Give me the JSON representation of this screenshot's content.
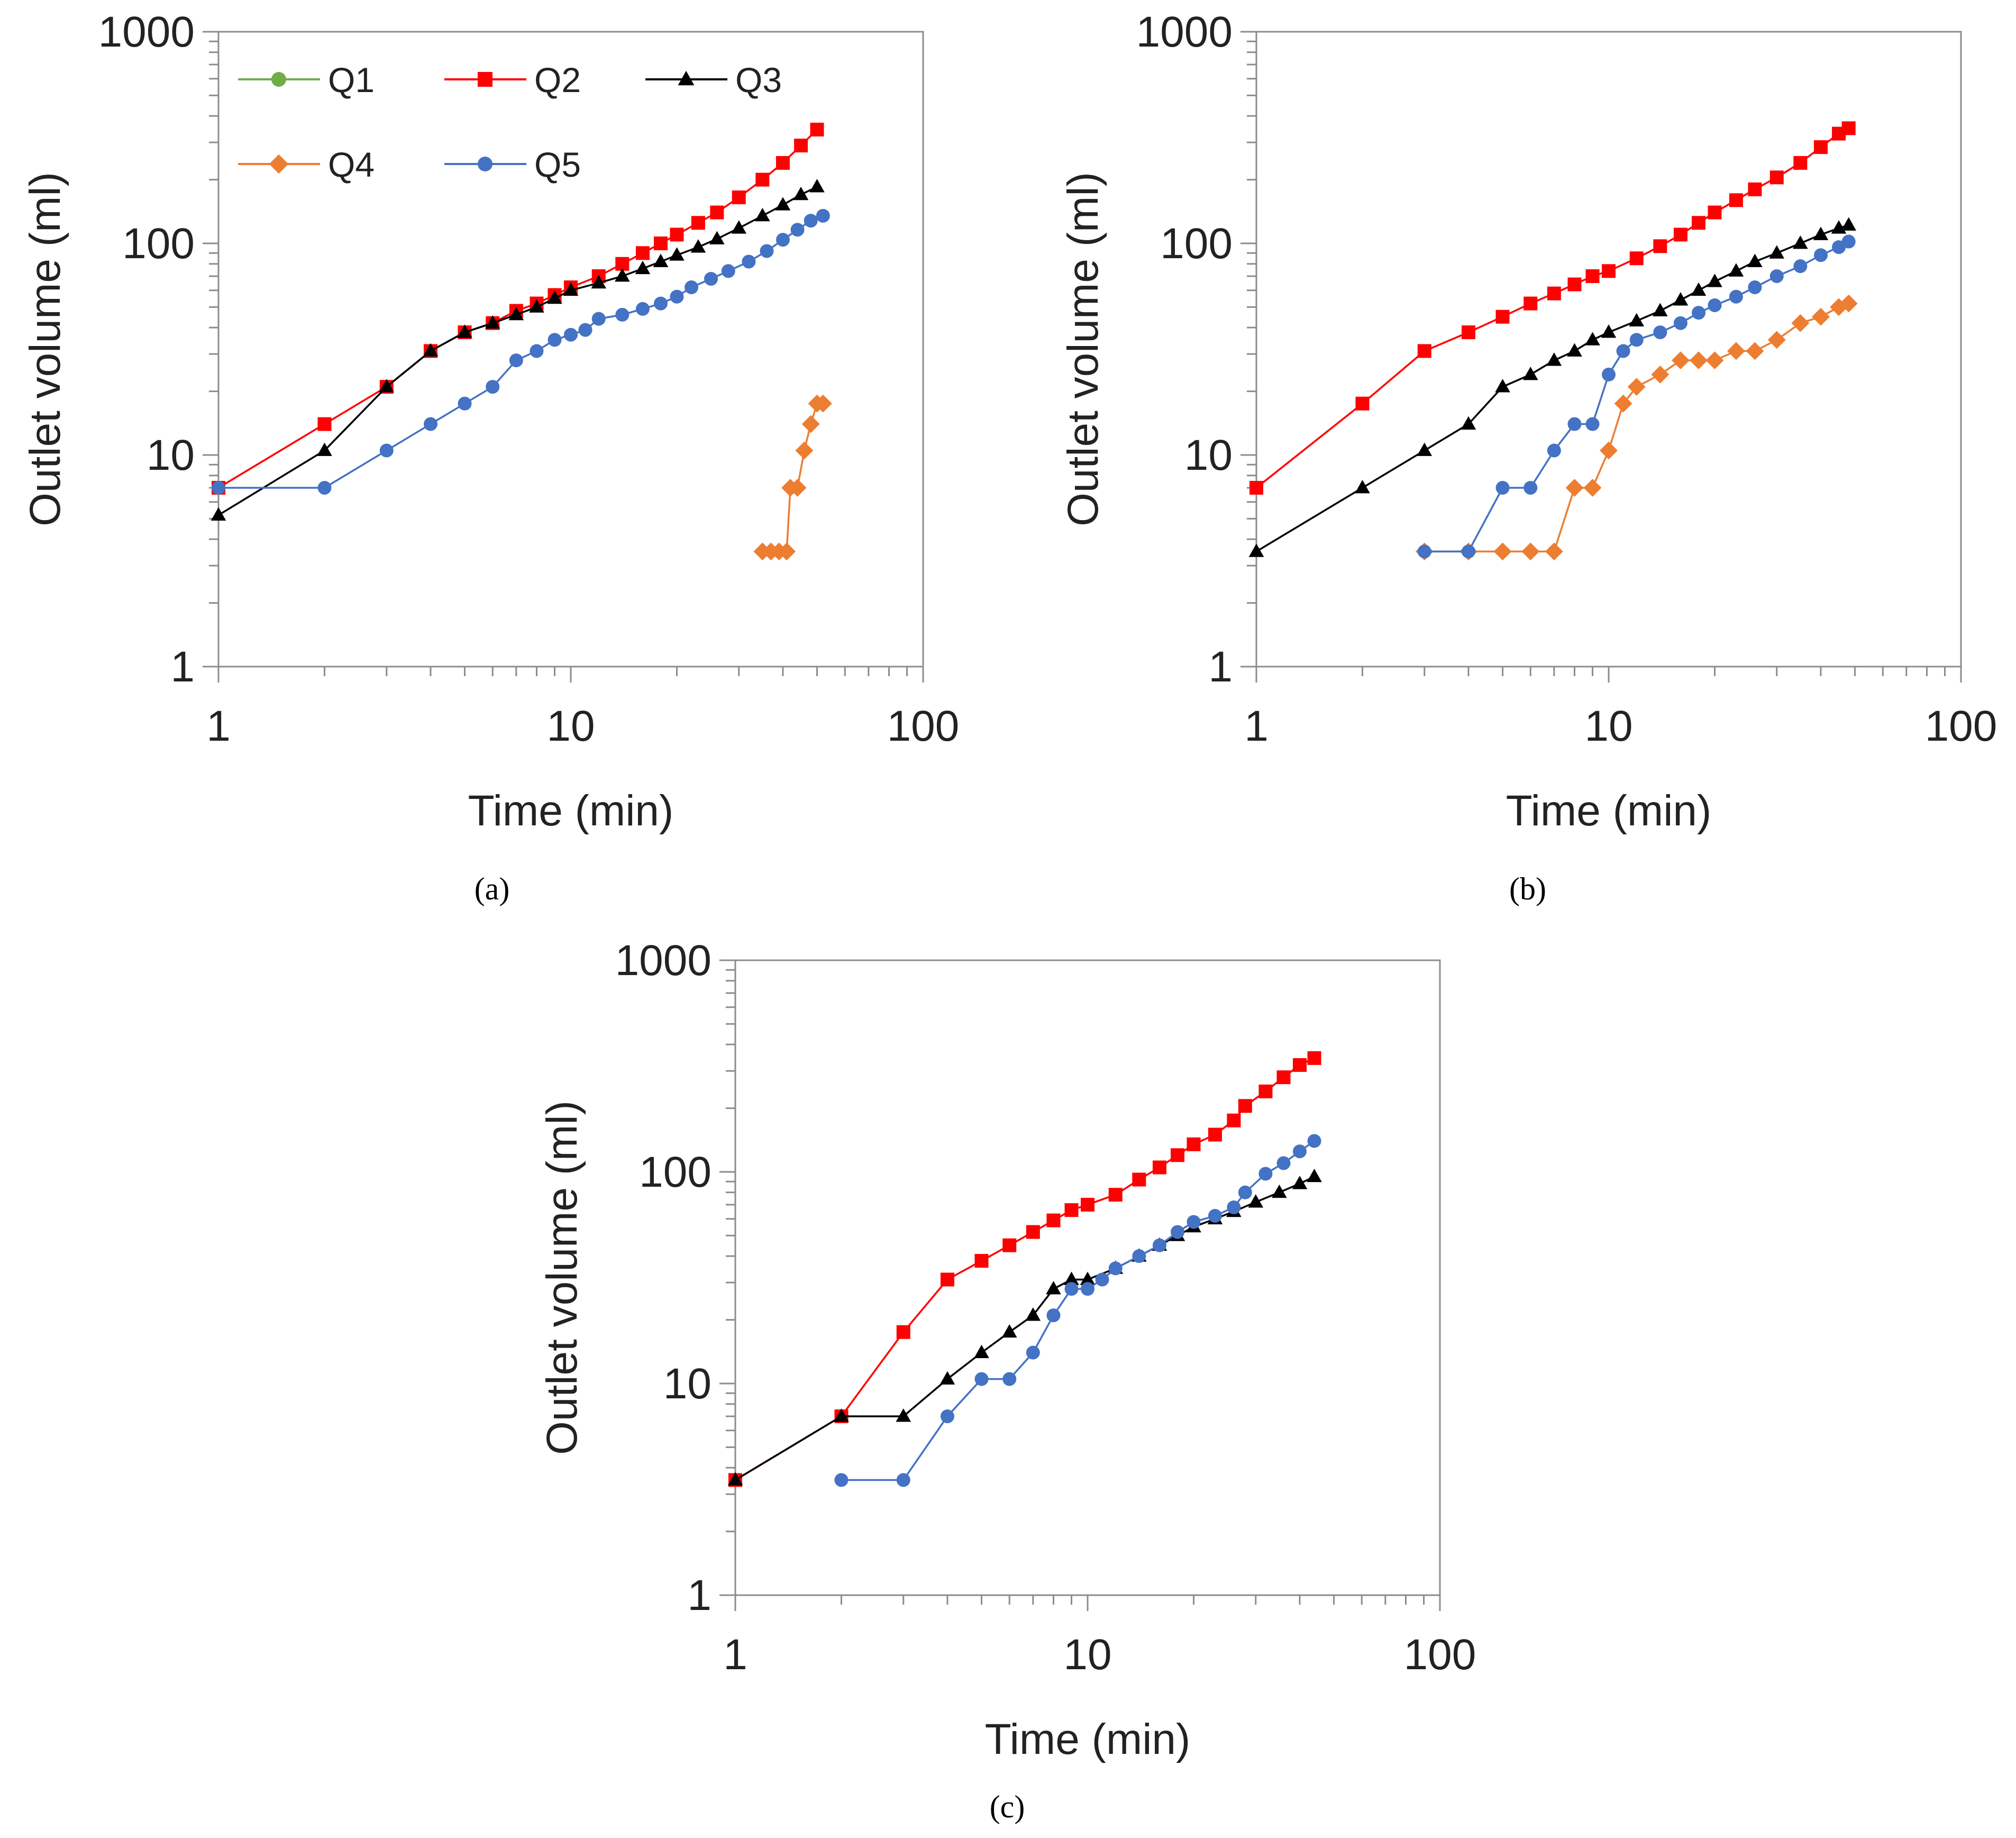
{
  "figure": {
    "legend": [
      {
        "name": "Q1",
        "color": "#70AD47",
        "marker": "circle"
      },
      {
        "name": "Q2",
        "color": "#FF0000",
        "marker": "square"
      },
      {
        "name": "Q3",
        "color": "#000000",
        "marker": "triangle"
      },
      {
        "name": "Q4",
        "color": "#ED7D31",
        "marker": "diamond"
      },
      {
        "name": "Q5",
        "color": "#4472C4",
        "marker": "circle"
      }
    ]
  },
  "chart_data": [
    {
      "type": "scatter",
      "caption": "(a)",
      "xscale": "log",
      "yscale": "log",
      "xlim": [
        1,
        100
      ],
      "ylim": [
        1,
        1000
      ],
      "xticks": [
        "1",
        "10",
        "100"
      ],
      "yticks": [
        "1",
        "10",
        "100",
        "1000"
      ],
      "xlabel": "Time (min)",
      "ylabel": "Outlet volume (ml)",
      "legend_position": "top-left",
      "series": [
        {
          "name": "Q2",
          "points": [
            [
              1,
              7
            ],
            [
              2,
              14
            ],
            [
              3,
              21
            ],
            [
              4,
              31
            ],
            [
              5,
              38
            ],
            [
              6,
              42
            ],
            [
              7,
              48
            ],
            [
              8,
              52
            ],
            [
              9,
              57
            ],
            [
              10,
              62
            ],
            [
              12,
              70
            ],
            [
              14,
              80
            ],
            [
              16,
              90
            ],
            [
              18,
              100
            ],
            [
              20,
              110
            ],
            [
              23,
              125
            ],
            [
              26,
              140
            ],
            [
              30,
              165
            ],
            [
              35,
              200
            ],
            [
              40,
              240
            ],
            [
              45,
              290
            ],
            [
              50,
              345
            ]
          ]
        },
        {
          "name": "Q3",
          "points": [
            [
              1,
              5.2
            ],
            [
              2,
              10.5
            ],
            [
              3,
              21
            ],
            [
              4,
              31
            ],
            [
              5,
              38
            ],
            [
              6,
              42
            ],
            [
              7,
              46
            ],
            [
              8,
              50
            ],
            [
              9,
              55
            ],
            [
              10,
              60
            ],
            [
              12,
              65
            ],
            [
              14,
              70
            ],
            [
              16,
              76
            ],
            [
              18,
              82
            ],
            [
              20,
              88
            ],
            [
              23,
              96
            ],
            [
              26,
              105
            ],
            [
              30,
              118
            ],
            [
              35,
              135
            ],
            [
              40,
              152
            ],
            [
              45,
              170
            ],
            [
              50,
              185
            ]
          ]
        },
        {
          "name": "Q4",
          "points": [
            [
              35,
              3.5
            ],
            [
              37,
              3.5
            ],
            [
              39,
              3.5
            ],
            [
              41,
              3.5
            ],
            [
              42,
              7
            ],
            [
              44,
              7
            ],
            [
              46,
              10.5
            ],
            [
              48,
              14
            ],
            [
              50,
              17.5
            ],
            [
              52,
              17.5
            ]
          ]
        },
        {
          "name": "Q5",
          "points": [
            [
              1,
              7
            ],
            [
              2,
              7
            ],
            [
              3,
              10.5
            ],
            [
              4,
              14
            ],
            [
              5,
              17.5
            ],
            [
              6,
              21
            ],
            [
              7,
              28
            ],
            [
              8,
              31
            ],
            [
              9,
              35
            ],
            [
              10,
              37
            ],
            [
              11,
              39
            ],
            [
              12,
              44
            ],
            [
              14,
              46
            ],
            [
              16,
              49
            ],
            [
              18,
              52
            ],
            [
              20,
              56
            ],
            [
              22,
              62
            ],
            [
              25,
              68
            ],
            [
              28,
              74
            ],
            [
              32,
              82
            ],
            [
              36,
              92
            ],
            [
              40,
              104
            ],
            [
              44,
              116
            ],
            [
              48,
              128
            ],
            [
              52,
              135
            ]
          ]
        }
      ]
    },
    {
      "type": "scatter",
      "caption": "(b)",
      "xscale": "log",
      "yscale": "log",
      "xlim": [
        1,
        100
      ],
      "ylim": [
        1,
        1000
      ],
      "xticks": [
        "1",
        "10",
        "100"
      ],
      "yticks": [
        "1",
        "10",
        "100",
        "1000"
      ],
      "xlabel": "Time (min)",
      "ylabel": "Outlet volume (ml)",
      "series": [
        {
          "name": "Q2",
          "points": [
            [
              1,
              7
            ],
            [
              2,
              17.5
            ],
            [
              3,
              31
            ],
            [
              4,
              38
            ],
            [
              5,
              45
            ],
            [
              6,
              52
            ],
            [
              7,
              58
            ],
            [
              8,
              64
            ],
            [
              9,
              70
            ],
            [
              10,
              74
            ],
            [
              12,
              85
            ],
            [
              14,
              97
            ],
            [
              16,
              110
            ],
            [
              18,
              125
            ],
            [
              20,
              140
            ],
            [
              23,
              160
            ],
            [
              26,
              180
            ],
            [
              30,
              205
            ],
            [
              35,
              240
            ],
            [
              40,
              285
            ],
            [
              45,
              330
            ],
            [
              48,
              350
            ]
          ]
        },
        {
          "name": "Q3",
          "points": [
            [
              1,
              3.5
            ],
            [
              2,
              7
            ],
            [
              3,
              10.5
            ],
            [
              4,
              14
            ],
            [
              5,
              21
            ],
            [
              6,
              24
            ],
            [
              7,
              28
            ],
            [
              8,
              31
            ],
            [
              9,
              35
            ],
            [
              10,
              38
            ],
            [
              12,
              43
            ],
            [
              14,
              48
            ],
            [
              16,
              54
            ],
            [
              18,
              60
            ],
            [
              20,
              66
            ],
            [
              23,
              74
            ],
            [
              26,
              82
            ],
            [
              30,
              90
            ],
            [
              35,
              100
            ],
            [
              40,
              110
            ],
            [
              45,
              118
            ],
            [
              48,
              122
            ]
          ]
        },
        {
          "name": "Q4",
          "points": [
            [
              3,
              3.5
            ],
            [
              4,
              3.5
            ],
            [
              5,
              3.5
            ],
            [
              6,
              3.5
            ],
            [
              7,
              3.5
            ],
            [
              8,
              7
            ],
            [
              9,
              7
            ],
            [
              10,
              10.5
            ],
            [
              11,
              17.5
            ],
            [
              12,
              21
            ],
            [
              14,
              24
            ],
            [
              16,
              28
            ],
            [
              18,
              28
            ],
            [
              20,
              28
            ],
            [
              23,
              31
            ],
            [
              26,
              31
            ],
            [
              30,
              35
            ],
            [
              35,
              42
            ],
            [
              40,
              45
            ],
            [
              45,
              50
            ],
            [
              48,
              52
            ]
          ]
        },
        {
          "name": "Q5",
          "points": [
            [
              3,
              3.5
            ],
            [
              4,
              3.5
            ],
            [
              5,
              7
            ],
            [
              6,
              7
            ],
            [
              7,
              10.5
            ],
            [
              8,
              14
            ],
            [
              9,
              14
            ],
            [
              10,
              24
            ],
            [
              11,
              31
            ],
            [
              12,
              35
            ],
            [
              14,
              38
            ],
            [
              16,
              42
            ],
            [
              18,
              47
            ],
            [
              20,
              51
            ],
            [
              23,
              56
            ],
            [
              26,
              62
            ],
            [
              30,
              70
            ],
            [
              35,
              78
            ],
            [
              40,
              88
            ],
            [
              45,
              96
            ],
            [
              48,
              102
            ]
          ]
        }
      ]
    },
    {
      "type": "scatter",
      "caption": "(c)",
      "xscale": "log",
      "yscale": "log",
      "xlim": [
        1,
        100
      ],
      "ylim": [
        1,
        1000
      ],
      "xticks": [
        "1",
        "10",
        "100"
      ],
      "yticks": [
        "1",
        "10",
        "100",
        "1000"
      ],
      "xlabel": "Time (min)",
      "ylabel": "Outlet volume (ml)",
      "series": [
        {
          "name": "Q2",
          "points": [
            [
              1,
              3.5
            ],
            [
              2,
              7
            ],
            [
              3,
              17.5
            ],
            [
              4,
              31
            ],
            [
              5,
              38
            ],
            [
              6,
              45
            ],
            [
              7,
              52
            ],
            [
              8,
              59
            ],
            [
              9,
              66
            ],
            [
              10,
              70
            ],
            [
              12,
              78
            ],
            [
              14,
              92
            ],
            [
              16,
              105
            ],
            [
              18,
              120
            ],
            [
              20,
              135
            ],
            [
              23,
              150
            ],
            [
              26,
              175
            ],
            [
              28,
              205
            ],
            [
              32,
              240
            ],
            [
              36,
              280
            ],
            [
              40,
              320
            ],
            [
              44,
              345
            ]
          ]
        },
        {
          "name": "Q3",
          "points": [
            [
              1,
              3.5
            ],
            [
              2,
              7
            ],
            [
              3,
              7
            ],
            [
              4,
              10.5
            ],
            [
              5,
              14
            ],
            [
              6,
              17.5
            ],
            [
              7,
              21
            ],
            [
              8,
              28
            ],
            [
              9,
              31
            ],
            [
              10,
              31
            ],
            [
              12,
              35
            ],
            [
              14,
              40
            ],
            [
              16,
              45
            ],
            [
              18,
              50
            ],
            [
              20,
              55
            ],
            [
              23,
              60
            ],
            [
              26,
              65
            ],
            [
              30,
              72
            ],
            [
              35,
              80
            ],
            [
              40,
              88
            ],
            [
              44,
              95
            ]
          ]
        },
        {
          "name": "Q5",
          "points": [
            [
              2,
              3.5
            ],
            [
              3,
              3.5
            ],
            [
              4,
              7
            ],
            [
              5,
              10.5
            ],
            [
              6,
              10.5
            ],
            [
              7,
              14
            ],
            [
              8,
              21
            ],
            [
              9,
              28
            ],
            [
              10,
              28
            ],
            [
              11,
              31
            ],
            [
              12,
              35
            ],
            [
              14,
              40
            ],
            [
              16,
              45
            ],
            [
              18,
              52
            ],
            [
              20,
              58
            ],
            [
              23,
              62
            ],
            [
              26,
              68
            ],
            [
              28,
              80
            ],
            [
              32,
              98
            ],
            [
              36,
              110
            ],
            [
              40,
              125
            ],
            [
              44,
              140
            ]
          ]
        }
      ]
    }
  ]
}
